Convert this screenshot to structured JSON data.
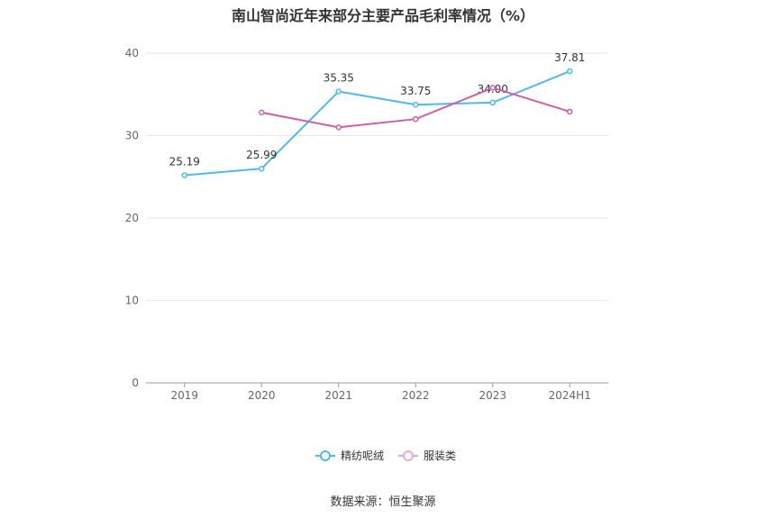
{
  "chart_data": {
    "type": "line",
    "title": "南山智尚近年来部分主要产品毛利率情况（%）",
    "categories": [
      "2019",
      "2020",
      "2021",
      "2022",
      "2023",
      "2024H1"
    ],
    "series": [
      {
        "name": "精纺呢绒",
        "values": [
          25.19,
          25.99,
          35.35,
          33.75,
          34.0,
          37.81
        ],
        "labels": [
          "25.19",
          "25.99",
          "35.35",
          "33.75",
          "34.00",
          "37.81"
        ],
        "color": "#4fb9ef"
      },
      {
        "name": "服装类",
        "values": [
          null,
          32.8,
          31.0,
          32.0,
          35.8,
          32.9
        ],
        "color": "#cc5fa8"
      }
    ],
    "ylim": [
      0,
      40
    ],
    "yticks": [
      0,
      10,
      20,
      30,
      40
    ],
    "xlabel": "",
    "ylabel": "",
    "grid": true,
    "legend": "bottom-center"
  },
  "source": "数据来源：恒生聚源"
}
